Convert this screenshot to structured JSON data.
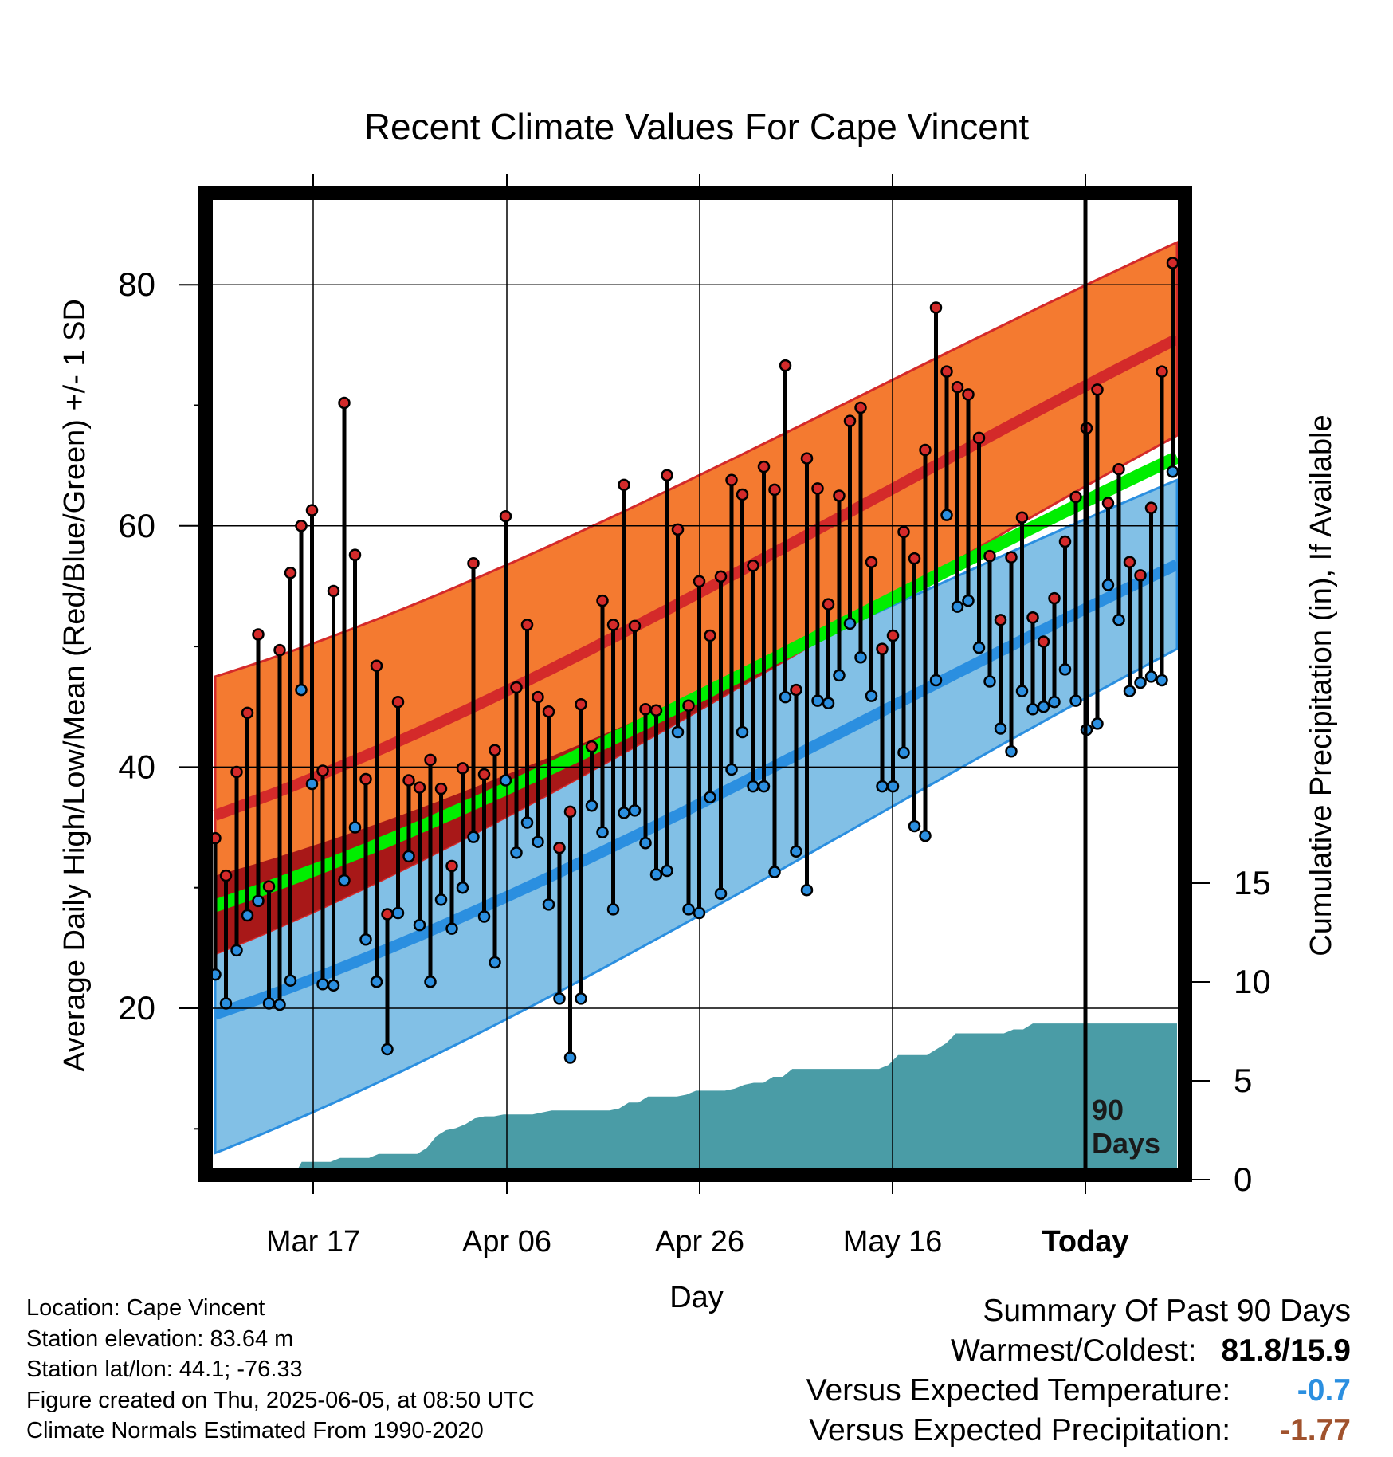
{
  "chart_data": {
    "type": "line",
    "title": "Recent Climate Values For Cape Vincent",
    "xlabel": "Day",
    "ylabel_left": "Average Daily High/Low/Mean (Red/Blue/Green) +/- 1 SD",
    "ylabel_right": "Cumulative Precipitation (in), If Available",
    "x_ticks": [
      "Mar 17",
      "Apr 06",
      "Apr 26",
      "May 16",
      "Today"
    ],
    "y_ticks_left": [
      "20",
      "40",
      "60",
      "80"
    ],
    "y_ticks_right": [
      "0",
      "5",
      "10",
      "15"
    ],
    "ylim_left": [
      5,
      88
    ],
    "ylim_right": [
      0,
      50
    ],
    "grid": true,
    "today_marker_label": [
      "90",
      "Days"
    ],
    "normal_high": {
      "start": 36,
      "end": 75.5
    },
    "normal_high_sd": {
      "start": 11.5,
      "end": 8
    },
    "normal_low": {
      "start": 19.5,
      "end": 56.8
    },
    "normal_low_sd": {
      "start": 11.5,
      "end": 7
    },
    "normal_mean": {
      "start": 28.5,
      "end": 65.7
    },
    "series": [
      {
        "name": "Daily High",
        "color": "#d42a2a",
        "values": [
          34.1,
          31.0,
          39.6,
          44.5,
          51.0,
          30.1,
          49.7,
          56.1,
          60.0,
          61.3,
          39.7,
          54.6,
          70.2,
          57.6,
          39.0,
          48.4,
          27.8,
          45.4,
          38.9,
          38.3,
          40.6,
          38.2,
          31.8,
          39.9,
          56.9,
          39.4,
          41.4,
          60.8,
          46.6,
          51.8,
          45.8,
          44.6,
          33.3,
          36.3,
          45.2,
          41.7,
          53.8,
          51.8,
          63.4,
          51.7,
          44.8,
          44.7,
          64.2,
          59.7,
          45.1,
          55.4,
          50.9,
          55.8,
          63.8,
          62.6,
          56.7,
          64.9,
          63.0,
          73.3,
          46.4,
          65.6,
          63.1,
          53.5,
          62.5,
          68.7,
          69.8,
          57.0,
          49.8,
          50.9,
          59.5,
          57.3,
          66.3,
          78.1,
          72.8,
          71.5,
          70.9,
          67.3,
          57.5,
          52.2,
          57.4,
          60.7,
          52.4,
          50.4,
          54.0,
          58.7,
          62.4,
          68.1,
          71.3,
          61.9,
          64.7,
          57.0,
          55.9,
          61.5,
          72.8,
          81.8
        ]
      },
      {
        "name": "Daily Low",
        "color": "#2b8fe0",
        "values": [
          22.8,
          20.4,
          24.8,
          27.7,
          28.9,
          20.4,
          20.3,
          22.3,
          46.4,
          38.6,
          22.0,
          21.9,
          30.6,
          35.0,
          25.7,
          22.2,
          16.6,
          27.9,
          32.6,
          26.9,
          22.2,
          29.0,
          26.6,
          30.0,
          34.2,
          27.6,
          23.8,
          38.9,
          32.9,
          35.4,
          33.8,
          28.6,
          20.8,
          15.9,
          20.8,
          36.8,
          34.6,
          28.2,
          36.2,
          36.4,
          33.7,
          31.1,
          31.4,
          42.9,
          28.2,
          27.9,
          37.5,
          29.5,
          39.8,
          42.9,
          38.4,
          38.4,
          31.3,
          45.8,
          33.0,
          29.8,
          45.5,
          45.3,
          47.6,
          51.9,
          49.1,
          45.9,
          38.4,
          38.4,
          41.2,
          35.1,
          34.3,
          47.2,
          60.9,
          53.3,
          53.8,
          49.9,
          47.1,
          43.2,
          41.3,
          46.3,
          44.8,
          45.0,
          45.4,
          48.1,
          45.5,
          43.1,
          43.6,
          55.1,
          52.2,
          46.3,
          47.0,
          47.5,
          47.2,
          64.5
        ]
      }
    ],
    "precip_cumulative": [
      0,
      0,
      0,
      0,
      0,
      0,
      0,
      0,
      0,
      0.9,
      0.9,
      0.9,
      0.9,
      1.1,
      1.1,
      1.1,
      1.1,
      1.3,
      1.3,
      1.3,
      1.3,
      1.3,
      1.6,
      2.2,
      2.5,
      2.6,
      2.8,
      3.1,
      3.2,
      3.2,
      3.3,
      3.3,
      3.3,
      3.3,
      3.4,
      3.5,
      3.5,
      3.5,
      3.5,
      3.5,
      3.5,
      3.5,
      3.6,
      3.9,
      3.9,
      4.2,
      4.2,
      4.2,
      4.2,
      4.3,
      4.5,
      4.5,
      4.5,
      4.5,
      4.6,
      4.8,
      4.9,
      4.9,
      5.2,
      5.2,
      5.6,
      5.6,
      5.6,
      5.6,
      5.6,
      5.6,
      5.6,
      5.6,
      5.6,
      5.6,
      5.8,
      6.3,
      6.3,
      6.3,
      6.3,
      6.6,
      6.9,
      7.4,
      7.4,
      7.4,
      7.4,
      7.4,
      7.4,
      7.6,
      7.6,
      7.9,
      7.9,
      7.9,
      7.9,
      7.9,
      7.9,
      7.9,
      7.9,
      7.9,
      7.9,
      7.9,
      7.9,
      7.9,
      7.9,
      7.9,
      7.9
    ]
  },
  "info": {
    "location": "Location: Cape Vincent",
    "elevation": "Station elevation: 83.64 m",
    "latlon": "Station lat/lon: 44.1; -76.33",
    "created": "Figure created on Thu, 2025-06-05, at 08:50 UTC",
    "normals": "Climate Normals Estimated From 1990-2020"
  },
  "summary": {
    "title": "Summary Of Past 90 Days",
    "warm_cold_label": "Warmest/Coldest:",
    "warm_cold_value": "81.8/15.9",
    "temp_label": "Versus Expected Temperature:",
    "temp_value": "-0.7",
    "temp_color": "#2b8fe0",
    "precip_label": "Versus Expected Precipitation:",
    "precip_value": "-1.77",
    "precip_color": "#a0522d"
  },
  "colors": {
    "high_band": "#f47a30",
    "high_line": "#d42a2a",
    "low_band": "#82c0e6",
    "low_line": "#2b8fe0",
    "mean_line": "#00ee00",
    "overlap_band": "#a81818",
    "precip": "#4a9ca6"
  }
}
